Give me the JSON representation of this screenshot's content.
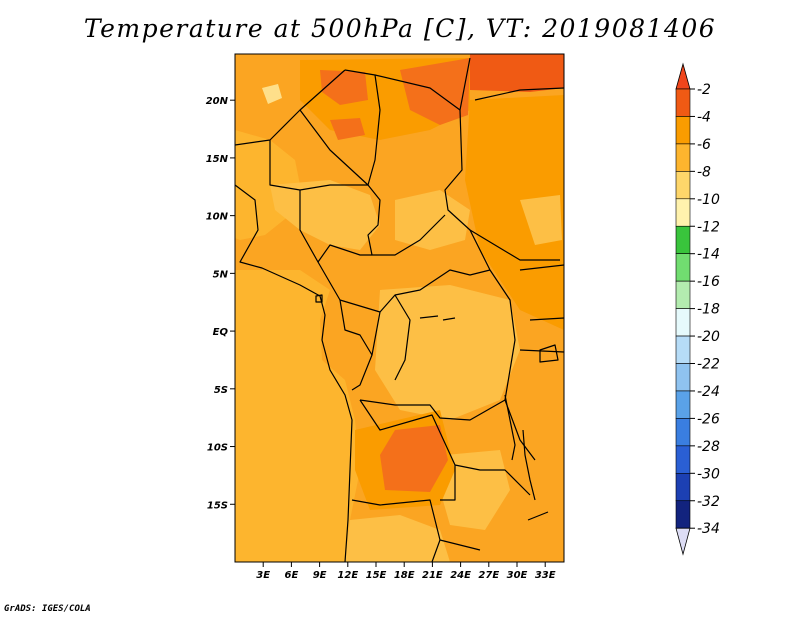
{
  "title": "Temperature at 500hPa [C], VT: 2019081406",
  "credit": "GrADS: IGES/COLA",
  "map": {
    "lon_range": [
      0,
      35
    ],
    "lat_range": [
      -20,
      24
    ],
    "x_ticks": [
      {
        "value": 3,
        "label": "3E"
      },
      {
        "value": 6,
        "label": "6E"
      },
      {
        "value": 9,
        "label": "9E"
      },
      {
        "value": 12,
        "label": "12E"
      },
      {
        "value": 15,
        "label": "15E"
      },
      {
        "value": 18,
        "label": "18E"
      },
      {
        "value": 21,
        "label": "21E"
      },
      {
        "value": 24,
        "label": "24E"
      },
      {
        "value": 27,
        "label": "27E"
      },
      {
        "value": 30,
        "label": "30E"
      },
      {
        "value": 33,
        "label": "33E"
      }
    ],
    "y_ticks": [
      {
        "value": 20,
        "label": "20N"
      },
      {
        "value": 15,
        "label": "15N"
      },
      {
        "value": 10,
        "label": "10N"
      },
      {
        "value": 5,
        "label": "5N"
      },
      {
        "value": 0,
        "label": "EQ"
      },
      {
        "value": -5,
        "label": "5S"
      },
      {
        "value": -10,
        "label": "10S"
      },
      {
        "value": -15,
        "label": "15S"
      }
    ]
  },
  "colorbar": {
    "levels": [
      "-2",
      "-4",
      "-6",
      "-8",
      "-10",
      "-12",
      "-14",
      "-16",
      "-18",
      "-20",
      "-22",
      "-24",
      "-26",
      "-28",
      "-30",
      "-32",
      "-34"
    ],
    "colors": [
      "#f05a14",
      "#fa9c00",
      "#fdb52e",
      "#fed66a",
      "#fff2ad",
      "#39c43c",
      "#71dd70",
      "#b3ecaf",
      "#e6fafc",
      "#b6dcf7",
      "#8fc3f0",
      "#5aa2e8",
      "#3a7ee0",
      "#2a5fd4",
      "#1c40b3",
      "#12237e",
      "#ddddf5"
    ],
    "top_triangle_color": "#f0461c",
    "bottom_triangle_color": "#ddddf5"
  },
  "palette": {
    "ocean": "#fdb52e",
    "land_base": "#fba522",
    "warm": "#fa9c00",
    "hot": "#f4701a",
    "hottest": "#f05a14",
    "cool": "#fdbf45",
    "coolest": "#fedf8a"
  }
}
